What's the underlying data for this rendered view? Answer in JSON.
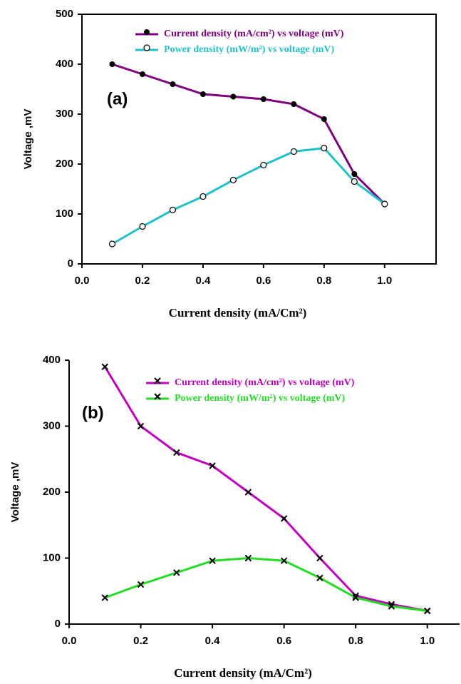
{
  "chart_data": [
    {
      "type": "line",
      "annotation": "(a)",
      "x_label": "Current density (mA/Cm²)",
      "y_label": "Voltage ,mV",
      "x": [
        0.1,
        0.2,
        0.3,
        0.4,
        0.5,
        0.6,
        0.7,
        0.8,
        0.9,
        1.0
      ],
      "series": [
        {
          "name": "Current density (mA/cm²) vs voltage (mV)",
          "color": "#800080",
          "marker": "filled-circle",
          "values": [
            400,
            380,
            360,
            340,
            335,
            330,
            320,
            290,
            180,
            120
          ]
        },
        {
          "name": "Power  density (mW/m²) vs voltage (mV)",
          "color": "#20c0c8",
          "marker": "open-circle",
          "values": [
            40,
            75,
            108,
            135,
            168,
            198,
            225,
            232,
            165,
            120
          ]
        }
      ],
      "xlim": [
        0,
        1.17
      ],
      "xticks": [
        {
          "value": 0,
          "label": "0.0"
        },
        0.2,
        0.4,
        0.6,
        0.8,
        {
          "value": 1,
          "label": "1.0"
        }
      ],
      "ylim": [
        0,
        500
      ],
      "yticks": [
        0,
        100,
        200,
        300,
        400,
        500
      ],
      "frame": "box"
    },
    {
      "type": "line",
      "annotation": "(b)",
      "x_label": "Current density (mA/Cm²)",
      "y_label": "Voltage ,mV",
      "x": [
        0.1,
        0.2,
        0.3,
        0.4,
        0.5,
        0.6,
        0.7,
        0.8,
        0.9,
        1.0
      ],
      "series": [
        {
          "name": "Current density (mA/cm²) vs voltage (mV)",
          "color": "#c000c0",
          "marker": "cross",
          "values": [
            390,
            300,
            260,
            240,
            200,
            160,
            100,
            43,
            30,
            20
          ]
        },
        {
          "name": "Power  density (mW/m²) vs voltage (mV)",
          "color": "#22dd22",
          "marker": "cross",
          "values": [
            40,
            60,
            78,
            96,
            100,
            96,
            70,
            40,
            27,
            20
          ]
        }
      ],
      "xlim": [
        0,
        1.09
      ],
      "xticks": [
        {
          "value": 0,
          "label": "0.0"
        },
        0.2,
        0.4,
        0.6,
        0.8,
        {
          "value": 1,
          "label": "1.0"
        }
      ],
      "ylim": [
        0,
        400
      ],
      "yticks": [
        0,
        100,
        200,
        300,
        400
      ],
      "frame": "axes"
    }
  ]
}
